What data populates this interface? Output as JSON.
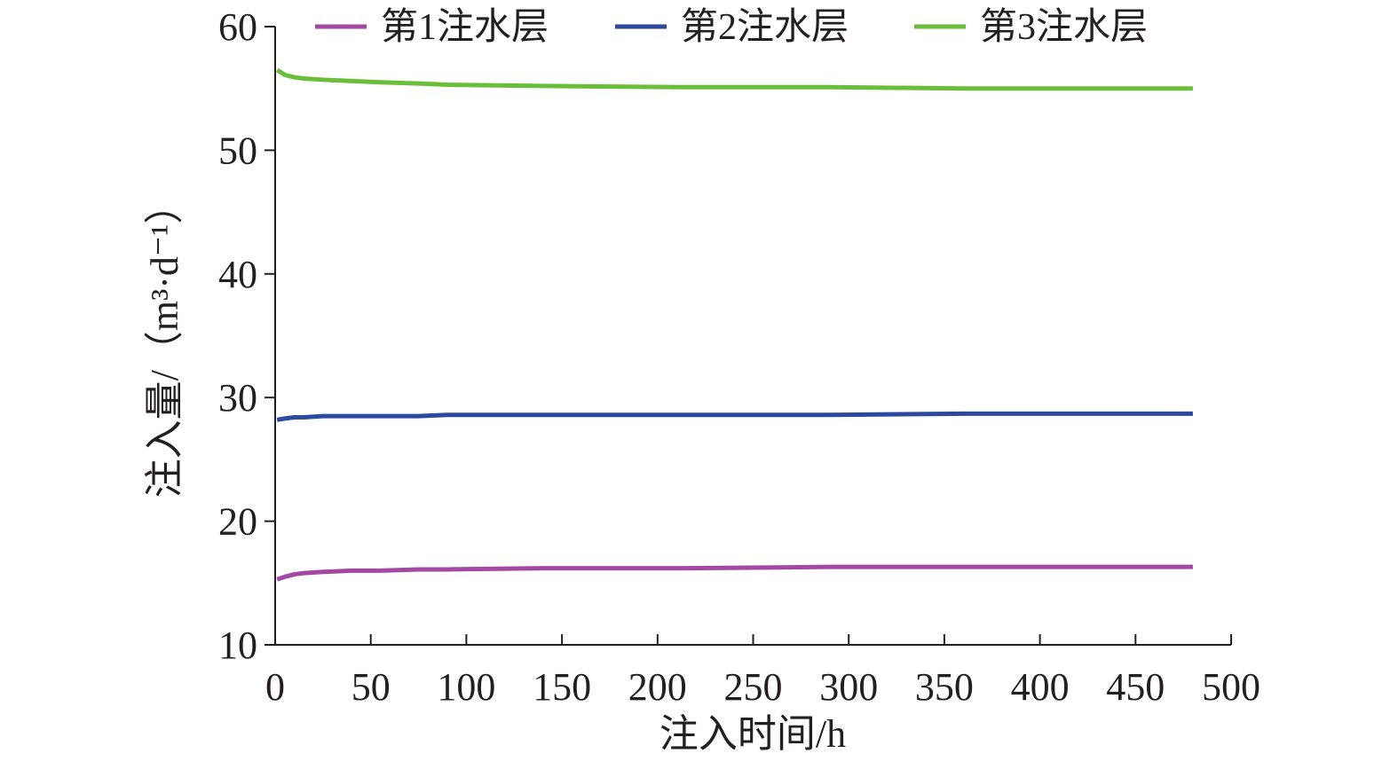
{
  "chart_data": {
    "type": "line",
    "x_label": "注入时间/h",
    "y_label": "注入量/（m³·d⁻¹）",
    "x": [
      1,
      5,
      10,
      15,
      25,
      40,
      55,
      75,
      90,
      140,
      215,
      290,
      360,
      480
    ],
    "series": [
      {
        "name": "第1注水层",
        "color": "#a349a4",
        "values": [
          15.3,
          15.5,
          15.7,
          15.8,
          15.9,
          16.0,
          16.0,
          16.1,
          16.1,
          16.2,
          16.2,
          16.3,
          16.3,
          16.3
        ]
      },
      {
        "name": "第2注水层",
        "color": "#2e4a9e",
        "values": [
          28.2,
          28.3,
          28.4,
          28.4,
          28.5,
          28.5,
          28.5,
          28.5,
          28.6,
          28.6,
          28.6,
          28.6,
          28.7,
          28.7
        ]
      },
      {
        "name": "第3注水层",
        "color": "#6abf3a",
        "values": [
          56.5,
          56.1,
          55.9,
          55.8,
          55.7,
          55.6,
          55.5,
          55.4,
          55.3,
          55.2,
          55.1,
          55.1,
          55.0,
          55.0
        ]
      }
    ],
    "xlim": [
      0,
      500
    ],
    "xticks": [
      0,
      50,
      100,
      150,
      200,
      250,
      300,
      350,
      400,
      450,
      500
    ],
    "ylim": [
      10,
      60
    ],
    "yticks": [
      10,
      20,
      30,
      40,
      50,
      60
    ],
    "grid": false,
    "legend": "top"
  }
}
